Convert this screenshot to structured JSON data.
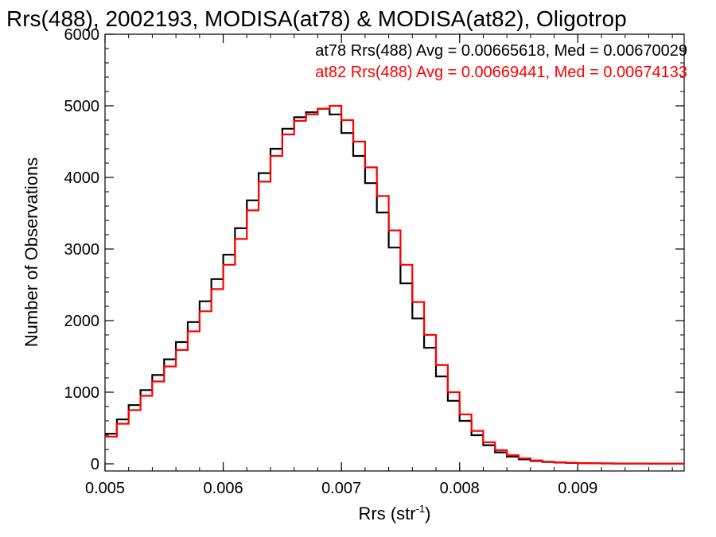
{
  "chart_data": {
    "type": "line",
    "title": "Rrs(488), 2002193, MODISA(at78) & MODISA(at82), Oligotrop",
    "xlabel": "Rrs (str",
    "xlabel_sup": "-1",
    "xlabel_close": ")",
    "ylabel": "Number of Observations",
    "xlim": [
      0.005,
      0.0099
    ],
    "ylim": [
      -100,
      6000
    ],
    "x_ticks": [
      0.005,
      0.006,
      0.007,
      0.008,
      0.009
    ],
    "x_tick_labels": [
      "0.005",
      "0.006",
      "0.007",
      "0.008",
      "0.009"
    ],
    "y_ticks": [
      0,
      1000,
      2000,
      3000,
      4000,
      5000,
      6000
    ],
    "y_tick_labels": [
      "0",
      "1000",
      "2000",
      "3000",
      "4000",
      "5000",
      "6000"
    ],
    "legend": [
      {
        "text": "at78 Rrs(488) Avg = 0.00665618, Med = 0.00670029",
        "color": "#000000"
      },
      {
        "text": "at82 Rrs(488) Avg = 0.00669441, Med = 0.00674133",
        "color": "#ff0000"
      }
    ],
    "legend_position": "top-right",
    "series": [
      {
        "color": "#000000",
        "x": [
          0.005,
          0.0051,
          0.0052,
          0.0053,
          0.0054,
          0.0055,
          0.0056,
          0.0057,
          0.0058,
          0.0059,
          0.006,
          0.0061,
          0.0062,
          0.0063,
          0.0064,
          0.0065,
          0.0066,
          0.0067,
          0.0068,
          0.0069,
          0.007,
          0.0071,
          0.0072,
          0.0073,
          0.0074,
          0.0075,
          0.0076,
          0.0077,
          0.0078,
          0.0079,
          0.008,
          0.0081,
          0.0082,
          0.0083,
          0.0084,
          0.0085,
          0.0086,
          0.0087,
          0.0088,
          0.0089,
          0.009,
          0.0091,
          0.0092,
          0.0093,
          0.0094,
          0.0095,
          0.0096,
          0.0097,
          0.0098,
          0.0099
        ],
        "y": [
          420,
          620,
          820,
          1030,
          1240,
          1460,
          1700,
          1980,
          2270,
          2580,
          2920,
          3290,
          3680,
          4060,
          4400,
          4680,
          4840,
          4910,
          4960,
          4880,
          4620,
          4300,
          3920,
          3510,
          3020,
          2520,
          2030,
          1620,
          1220,
          880,
          600,
          400,
          260,
          160,
          100,
          62,
          40,
          26,
          18,
          12,
          9,
          7,
          5,
          4,
          3,
          3,
          2,
          2,
          1,
          1
        ]
      },
      {
        "color": "#ff0000",
        "x": [
          0.005,
          0.0051,
          0.0052,
          0.0053,
          0.0054,
          0.0055,
          0.0056,
          0.0057,
          0.0058,
          0.0059,
          0.006,
          0.0061,
          0.0062,
          0.0063,
          0.0064,
          0.0065,
          0.0066,
          0.0067,
          0.0068,
          0.0069,
          0.007,
          0.0071,
          0.0072,
          0.0073,
          0.0074,
          0.0075,
          0.0076,
          0.0077,
          0.0078,
          0.0079,
          0.008,
          0.0081,
          0.0082,
          0.0083,
          0.0084,
          0.0085,
          0.0086,
          0.0087,
          0.0088,
          0.0089,
          0.009,
          0.0091,
          0.0092,
          0.0093,
          0.0094,
          0.0095,
          0.0096,
          0.0097,
          0.0098,
          0.0099
        ],
        "y": [
          380,
          560,
          750,
          950,
          1150,
          1360,
          1590,
          1850,
          2130,
          2440,
          2780,
          3140,
          3540,
          3940,
          4300,
          4600,
          4790,
          4880,
          4960,
          5000,
          4800,
          4500,
          4140,
          3740,
          3260,
          2780,
          2260,
          1800,
          1380,
          1000,
          690,
          460,
          300,
          190,
          120,
          76,
          48,
          30,
          20,
          14,
          10,
          7,
          5,
          4,
          3,
          3,
          2,
          2,
          1,
          1
        ]
      }
    ],
    "grid": false
  }
}
